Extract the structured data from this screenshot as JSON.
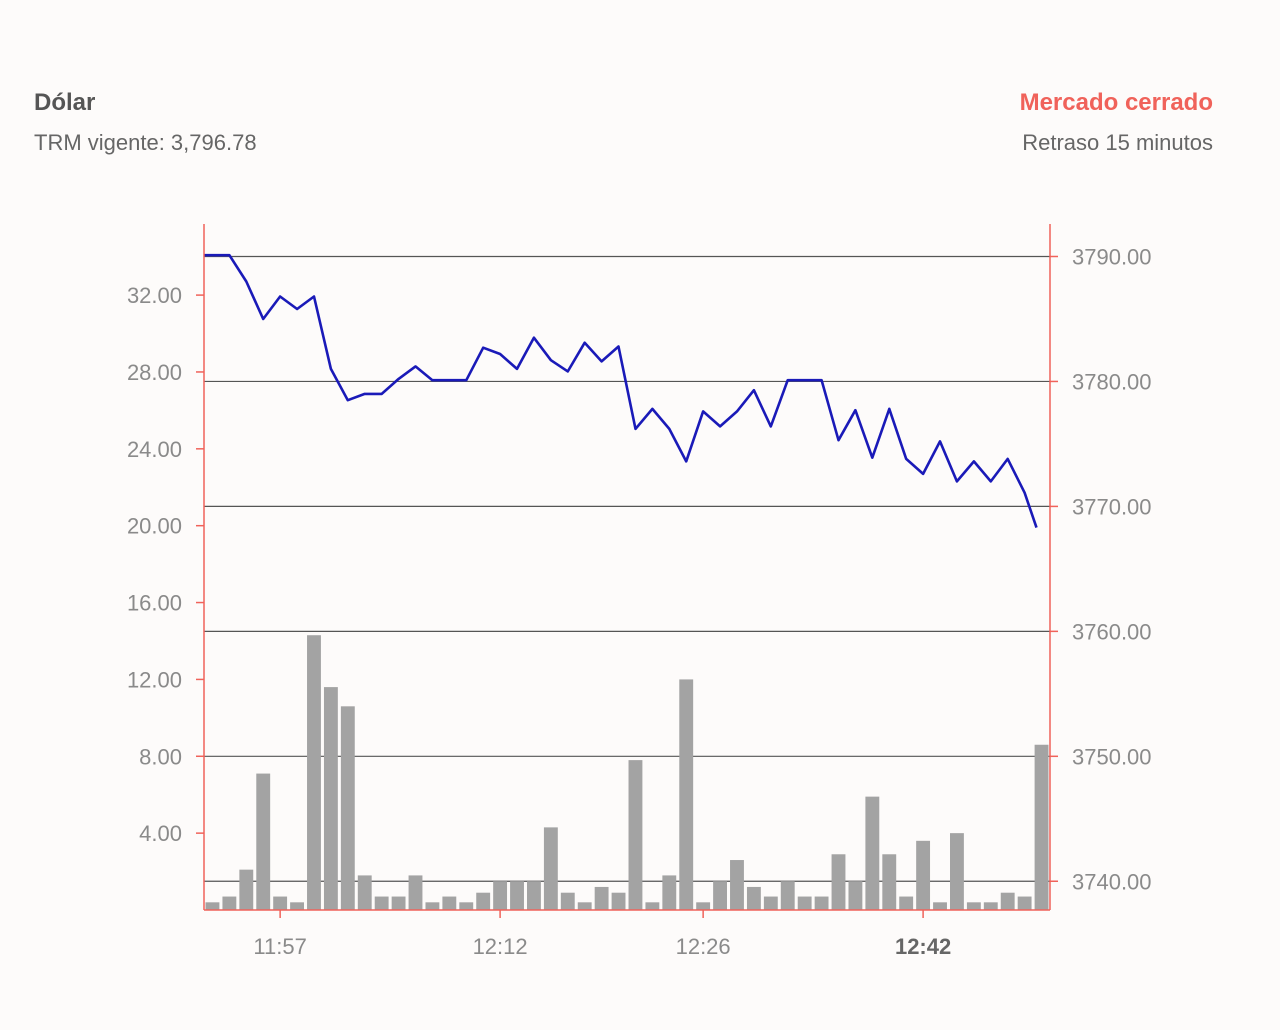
{
  "header": {
    "title": "Dólar",
    "trm_label": "TRM vigente: 3,796.78",
    "market_status": "Mercado cerrado",
    "delay_note": "Retraso 15 minutos"
  },
  "colors": {
    "line": "#1a1ab8",
    "bars": "#a3a3a3",
    "axis": "#f0625a",
    "grid": "#555555",
    "tick_text": "#8a8a8a",
    "status": "#f0625a"
  },
  "chart_data": {
    "type": "line",
    "series": [
      {
        "type": "line",
        "axis": "right",
        "values": [
          3790.1,
          3790.1,
          3788.0,
          3785.0,
          3786.8,
          3785.8,
          3786.8,
          3781.0,
          3778.5,
          3779.0,
          3779.0,
          3780.2,
          3781.2,
          3780.1,
          3780.1,
          3780.1,
          3782.7,
          3782.2,
          3781.0,
          3783.5,
          3781.7,
          3780.8,
          3783.1,
          3781.6,
          3782.8,
          3776.2,
          3777.8,
          3776.2,
          3773.6,
          3777.6,
          3776.4,
          3777.6,
          3779.3,
          3776.4,
          3780.1,
          3780.1,
          3780.1,
          3775.3,
          3777.7,
          3773.9,
          3777.8,
          3773.8,
          3772.6,
          3775.2,
          3772.0,
          3773.6,
          3772.0,
          3773.8,
          3771.1,
          3768.3
        ]
      },
      {
        "type": "bar",
        "axis": "left",
        "values": [
          0.4,
          0.7,
          2.1,
          7.1,
          0.7,
          0.4,
          14.3,
          11.6,
          10.6,
          1.8,
          0.7,
          0.7,
          1.8,
          0.4,
          0.7,
          0.4,
          0.9,
          1.5,
          1.5,
          1.5,
          4.3,
          0.9,
          0.4,
          1.2,
          0.9,
          7.8,
          0.4,
          1.8,
          12.0,
          0.4,
          1.5,
          2.6,
          1.2,
          0.7,
          1.5,
          0.7,
          0.7,
          2.9,
          1.5,
          5.9,
          2.9,
          0.7,
          3.6,
          0.4,
          4.0,
          0.4,
          0.4,
          0.9,
          0.7,
          8.6
        ]
      }
    ],
    "left_axis": {
      "ticks": [
        "4.00",
        "8.00",
        "12.00",
        "16.00",
        "20.00",
        "24.00",
        "28.00",
        "32.00"
      ],
      "range": [
        0,
        35.7
      ]
    },
    "right_axis": {
      "ticks": [
        "3740.00",
        "3750.00",
        "3760.00",
        "3770.00",
        "3780.00",
        "3790.00"
      ],
      "range": [
        3737.7,
        3792.6
      ]
    },
    "x_ticks": [
      {
        "label": "11:57",
        "index": 4,
        "bold": false
      },
      {
        "label": "12:12",
        "index": 17,
        "bold": false
      },
      {
        "label": "12:26",
        "index": 29,
        "bold": false
      },
      {
        "label": "12:42",
        "index": 42,
        "bold": true
      }
    ],
    "grid": "horizontal lines at right-axis ticks"
  }
}
